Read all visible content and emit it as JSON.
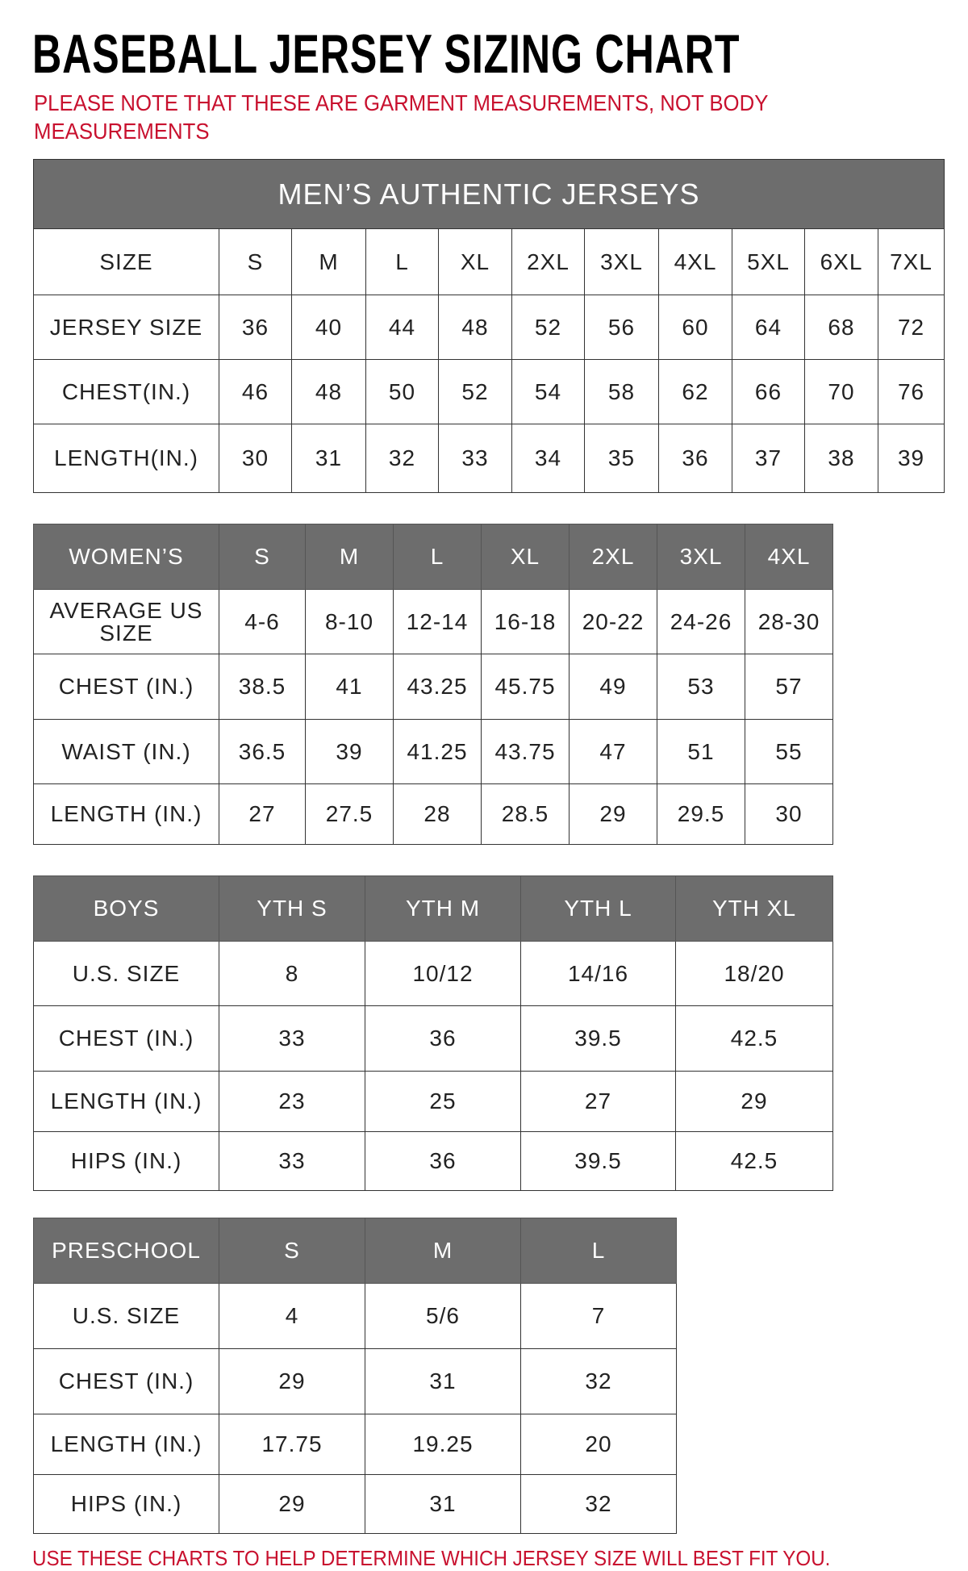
{
  "title": "BASEBALL JERSEY SIZING CHART",
  "note": "PLEASE NOTE THAT THESE ARE GARMENT MEASUREMENTS, NOT BODY MEASUREMENTS",
  "footer": "USE THESE CHARTS TO HELP DETERMINE WHICH JERSEY SIZE WILL BEST FIT YOU.",
  "colors": {
    "header_bg": "#6d6d6d",
    "note_red": "#c8102e"
  },
  "tables": [
    {
      "id": "mens",
      "banner": "MEN’S AUTHENTIC JERSEYS",
      "rows": [
        [
          "SIZE",
          "S",
          "M",
          "L",
          "XL",
          "2XL",
          "3XL",
          "4XL",
          "5XL",
          "6XL",
          "7XL"
        ],
        [
          "JERSEY SIZE",
          "36",
          "40",
          "44",
          "48",
          "52",
          "56",
          "60",
          "64",
          "68",
          "72"
        ],
        [
          "CHEST(IN.)",
          "46",
          "48",
          "50",
          "52",
          "54",
          "58",
          "62",
          "66",
          "70",
          "76"
        ],
        [
          "LENGTH(IN.)",
          "30",
          "31",
          "32",
          "33",
          "34",
          "35",
          "36",
          "37",
          "38",
          "39"
        ]
      ]
    },
    {
      "id": "womens",
      "rows": [
        [
          "WOMEN’S",
          "S",
          "M",
          "L",
          "XL",
          "2XL",
          "3XL",
          "4XL"
        ],
        [
          "AVERAGE US SIZE",
          "4-6",
          "8-10",
          "12-14",
          "16-18",
          "20-22",
          "24-26",
          "28-30"
        ],
        [
          "CHEST (IN.)",
          "38.5",
          "41",
          "43.25",
          "45.75",
          "49",
          "53",
          "57"
        ],
        [
          "WAIST (IN.)",
          "36.5",
          "39",
          "41.25",
          "43.75",
          "47",
          "51",
          "55"
        ],
        [
          "LENGTH (IN.)",
          "27",
          "27.5",
          "28",
          "28.5",
          "29",
          "29.5",
          "30"
        ]
      ]
    },
    {
      "id": "boys",
      "rows": [
        [
          "BOYS",
          "YTH S",
          "YTH M",
          "YTH L",
          "YTH XL"
        ],
        [
          "U.S. SIZE",
          "8",
          "10/12",
          "14/16",
          "18/20"
        ],
        [
          "CHEST (IN.)",
          "33",
          "36",
          "39.5",
          "42.5"
        ],
        [
          "LENGTH (IN.)",
          "23",
          "25",
          "27",
          "29"
        ],
        [
          "HIPS (IN.)",
          "33",
          "36",
          "39.5",
          "42.5"
        ]
      ]
    },
    {
      "id": "preschool",
      "rows": [
        [
          "PRESCHOOL",
          "S",
          "M",
          "L"
        ],
        [
          "U.S. SIZE",
          "4",
          "5/6",
          "7"
        ],
        [
          "CHEST (IN.)",
          "29",
          "31",
          "32"
        ],
        [
          "LENGTH (IN.)",
          "17.75",
          "19.25",
          "20"
        ],
        [
          "HIPS (IN.)",
          "29",
          "31",
          "32"
        ]
      ]
    }
  ]
}
